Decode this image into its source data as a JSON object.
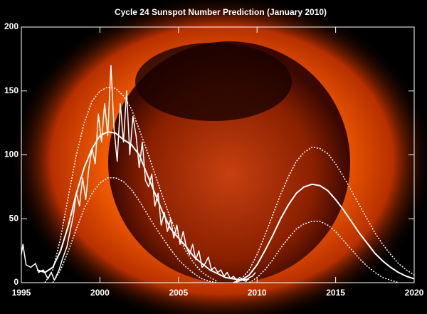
{
  "chart_data": {
    "type": "line",
    "title": "Cycle 24 Sunspot Number Prediction (January 2010)",
    "xlim": [
      1995,
      2020
    ],
    "xticks": [
      1995,
      2000,
      2005,
      2010,
      2015,
      2020
    ],
    "ylim": [
      0,
      200
    ],
    "yticks": [
      0,
      50,
      100,
      150,
      200
    ],
    "series": [
      {
        "color": "#ffffff",
        "style": "solid",
        "width": 1.5,
        "x": [
          1995.0,
          1995.1,
          1995.3,
          1995.6,
          1995.9,
          1996.1,
          1996.4,
          1996.7,
          1996.9,
          1997.1,
          1997.4,
          1997.6,
          1997.9,
          1998.1,
          1998.3,
          1998.5,
          1998.7,
          1998.9,
          1999.1,
          1999.3,
          1999.5,
          1999.7,
          1999.9,
          2000.1,
          2000.3,
          2000.5,
          2000.7,
          2000.9,
          2001.1,
          2001.3,
          2001.5,
          2001.7,
          2001.9,
          2002.1,
          2002.3,
          2002.5,
          2002.7,
          2002.9,
          2003.1,
          2003.3,
          2003.5,
          2003.7,
          2003.9,
          2004.1,
          2004.3,
          2004.5,
          2004.7,
          2004.9,
          2005.1,
          2005.3,
          2005.5,
          2005.7,
          2005.9,
          2006.1,
          2006.3,
          2006.5,
          2006.7,
          2006.9,
          2007.1,
          2007.3,
          2007.5,
          2007.7,
          2007.9,
          2008.1,
          2008.3,
          2008.5,
          2008.7,
          2008.9,
          2009.1,
          2009.3,
          2009.5,
          2009.7,
          2009.9
        ],
        "values": [
          22,
          30,
          14,
          12,
          15,
          8,
          10,
          3,
          8,
          2,
          10,
          18,
          28,
          40,
          52,
          70,
          60,
          82,
          65,
          90,
          105,
          93,
          132,
          110,
          140,
          115,
          170,
          120,
          95,
          140,
          110,
          150,
          100,
          130,
          115,
          90,
          110,
          80,
          75,
          85,
          60,
          70,
          45,
          55,
          40,
          50,
          35,
          45,
          30,
          40,
          28,
          22,
          30,
          18,
          25,
          12,
          15,
          20,
          10,
          12,
          8,
          10,
          5,
          8,
          3,
          5,
          2,
          4,
          2,
          1,
          4,
          5,
          8
        ]
      },
      {
        "color": "#ffffff",
        "style": "solid",
        "width": 2,
        "x": [
          1996.0,
          1996.5,
          1997.0,
          1997.5,
          1998.0,
          1998.5,
          1999.0,
          1999.5,
          2000.0,
          2000.5,
          2001.0,
          2001.5,
          2002.0,
          2002.5,
          2003.0,
          2003.5,
          2004.0,
          2004.5,
          2005.0,
          2005.5,
          2006.0,
          2006.5,
          2007.0,
          2007.5,
          2008.0,
          2008.5,
          2009.0,
          2009.5
        ],
        "values": [
          10,
          8,
          12,
          25,
          45,
          70,
          90,
          105,
          115,
          118,
          117,
          112,
          108,
          100,
          85,
          70,
          55,
          42,
          35,
          28,
          20,
          15,
          10,
          7,
          4,
          3,
          2,
          3
        ]
      },
      {
        "color": "#ffffff",
        "style": "dotted",
        "width": 1.5,
        "x": [
          1996.5,
          1997.0,
          1997.5,
          1998.0,
          1998.5,
          1999.0,
          1999.5,
          2000.0,
          2000.5,
          2001.0,
          2001.5,
          2002.0,
          2002.5,
          2003.0,
          2003.5,
          2004.0,
          2004.5,
          2005.0,
          2005.5,
          2006.0,
          2006.5,
          2007.0,
          2007.5
        ],
        "values": [
          0,
          10,
          35,
          68,
          100,
          125,
          142,
          150,
          153,
          152,
          146,
          136,
          120,
          103,
          85,
          67,
          50,
          36,
          24,
          15,
          8,
          4,
          1
        ]
      },
      {
        "color": "#ffffff",
        "style": "dotted",
        "width": 1.5,
        "x": [
          1997.0,
          1997.5,
          1998.0,
          1998.5,
          1999.0,
          1999.5,
          2000.0,
          2000.5,
          2001.0,
          2001.5,
          2002.0,
          2002.5,
          2003.0,
          2003.5,
          2004.0,
          2004.5,
          2005.0,
          2005.5,
          2006.0,
          2006.5,
          2007.0,
          2007.5
        ],
        "values": [
          0,
          10,
          25,
          42,
          58,
          70,
          78,
          82,
          82,
          79,
          73,
          64,
          54,
          44,
          35,
          26,
          18,
          12,
          7,
          3,
          1,
          0
        ]
      },
      {
        "color": "#ffffff",
        "style": "solid",
        "width": 2,
        "x": [
          2008.5,
          2009.0,
          2009.5,
          2010.0,
          2010.5,
          2011.0,
          2011.5,
          2012.0,
          2012.5,
          2013.0,
          2013.5,
          2014.0,
          2014.5,
          2015.0,
          2015.5,
          2016.0,
          2016.5,
          2017.0,
          2017.5,
          2018.0,
          2018.5,
          2019.0,
          2019.5,
          2020.0
        ],
        "values": [
          0,
          2,
          6,
          14,
          25,
          37,
          50,
          61,
          70,
          75,
          77,
          76,
          72,
          65,
          57,
          48,
          39,
          31,
          23,
          17,
          12,
          8,
          5,
          3
        ]
      },
      {
        "color": "#ffffff",
        "style": "dotted",
        "width": 1.5,
        "x": [
          2008.5,
          2009.0,
          2009.5,
          2010.0,
          2010.5,
          2011.0,
          2011.5,
          2012.0,
          2012.5,
          2013.0,
          2013.5,
          2014.0,
          2014.5,
          2015.0,
          2015.5,
          2016.0,
          2016.5,
          2017.0,
          2017.5,
          2018.0,
          2018.5,
          2019.0,
          2019.5,
          2020.0
        ],
        "values": [
          0,
          3,
          10,
          22,
          37,
          53,
          69,
          83,
          95,
          102,
          106,
          105,
          101,
          93,
          83,
          72,
          61,
          50,
          39,
          30,
          22,
          15,
          10,
          6
        ]
      },
      {
        "color": "#ffffff",
        "style": "dotted",
        "width": 1.5,
        "x": [
          2009.5,
          2010.0,
          2010.5,
          2011.0,
          2011.5,
          2012.0,
          2012.5,
          2013.0,
          2013.5,
          2014.0,
          2014.5,
          2015.0,
          2015.5,
          2016.0,
          2016.5,
          2017.0,
          2017.5,
          2018.0,
          2018.5,
          2019.0
        ],
        "values": [
          0,
          4,
          10,
          18,
          27,
          35,
          42,
          46,
          48,
          48,
          45,
          40,
          33,
          26,
          19,
          13,
          8,
          4,
          2,
          0
        ]
      }
    ]
  }
}
